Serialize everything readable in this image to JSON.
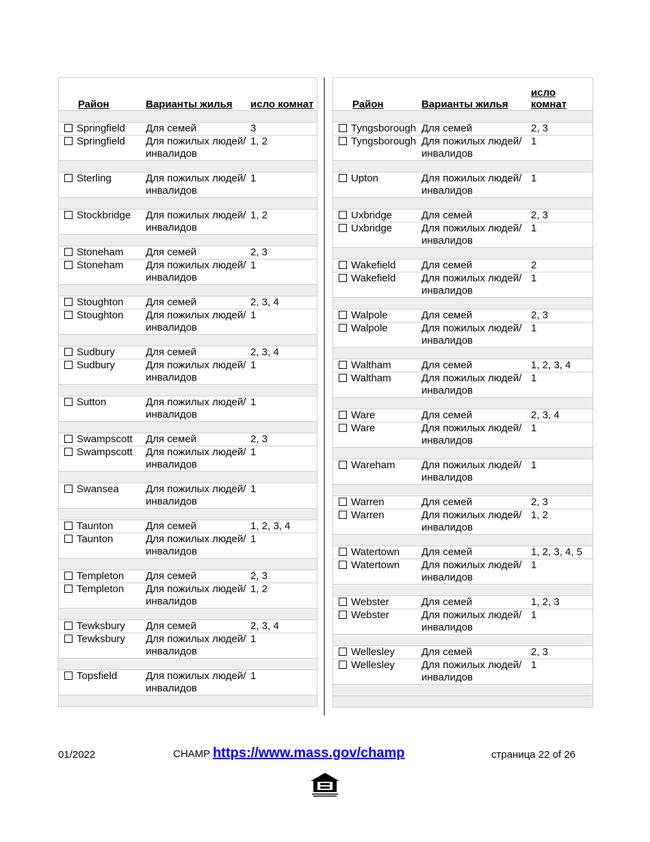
{
  "headers": {
    "district": "Район",
    "type": "Варианты жилья",
    "rooms": "исло комнат"
  },
  "left": [
    [
      {
        "d": "Springfield",
        "t": "Для семей",
        "r": "3"
      },
      {
        "d": "Springfield",
        "t": "Для пожилых людей/инвалидов",
        "r": "1, 2"
      }
    ],
    [
      {
        "d": "Sterling",
        "t": "Для пожилых людей/инвалидов",
        "r": "1"
      }
    ],
    [
      {
        "d": "Stockbridge",
        "t": "Для пожилых людей/инвалидов",
        "r": "1, 2"
      }
    ],
    [
      {
        "d": "Stoneham",
        "t": "Для семей",
        "r": "2, 3"
      },
      {
        "d": "Stoneham",
        "t": "Для пожилых людей/инвалидов",
        "r": "1"
      }
    ],
    [
      {
        "d": "Stoughton",
        "t": "Для семей",
        "r": "2, 3, 4"
      },
      {
        "d": "Stoughton",
        "t": "Для пожилых людей/инвалидов",
        "r": "1"
      }
    ],
    [
      {
        "d": "Sudbury",
        "t": "Для семей",
        "r": "2, 3, 4"
      },
      {
        "d": "Sudbury",
        "t": "Для пожилых людей/инвалидов",
        "r": "1"
      }
    ],
    [
      {
        "d": "Sutton",
        "t": "Для пожилых людей/инвалидов",
        "r": "1"
      }
    ],
    [
      {
        "d": "Swampscott",
        "t": "Для семей",
        "r": "2, 3"
      },
      {
        "d": "Swampscott",
        "t": "Для пожилых людей/инвалидов",
        "r": "1"
      }
    ],
    [
      {
        "d": "Swansea",
        "t": "Для пожилых людей/инвалидов",
        "r": "1"
      }
    ],
    [
      {
        "d": "Taunton",
        "t": "Для семей",
        "r": "1, 2, 3, 4"
      },
      {
        "d": "Taunton",
        "t": "Для пожилых людей/инвалидов",
        "r": "1"
      }
    ],
    [
      {
        "d": "Templeton",
        "t": "Для семей",
        "r": "2, 3"
      },
      {
        "d": "Templeton",
        "t": "Для пожилых людей/инвалидов",
        "r": "1, 2"
      }
    ],
    [
      {
        "d": "Tewksbury",
        "t": "Для семей",
        "r": "2, 3, 4"
      },
      {
        "d": "Tewksbury",
        "t": "Для пожилых людей/инвалидов",
        "r": "1"
      }
    ],
    [
      {
        "d": "Topsfield",
        "t": "Для пожилых людей/инвалидов",
        "r": "1"
      }
    ],
    []
  ],
  "right": [
    [
      {
        "d": "Tyngsborough",
        "t": "Для семей",
        "r": "2, 3"
      },
      {
        "d": "Tyngsborough",
        "t": "Для пожилых людей/инвалидов",
        "r": "1"
      }
    ],
    [
      {
        "d": "Upton",
        "t": "Для пожилых людей/инвалидов",
        "r": "1"
      }
    ],
    [
      {
        "d": "Uxbridge",
        "t": "Для семей",
        "r": "2, 3"
      },
      {
        "d": "Uxbridge",
        "t": "Для пожилых людей/инвалидов",
        "r": "1"
      }
    ],
    [
      {
        "d": "Wakefield",
        "t": "Для семей",
        "r": "2"
      },
      {
        "d": "Wakefield",
        "t": "Для пожилых людей/инвалидов",
        "r": "1"
      }
    ],
    [
      {
        "d": "Walpole",
        "t": "Для семей",
        "r": "2, 3"
      },
      {
        "d": "Walpole",
        "t": "Для пожилых людей/инвалидов",
        "r": "1"
      }
    ],
    [
      {
        "d": "Waltham",
        "t": "Для семей",
        "r": "1, 2, 3, 4"
      },
      {
        "d": "Waltham",
        "t": "Для пожилых людей/инвалидов",
        "r": "1"
      }
    ],
    [
      {
        "d": "Ware",
        "t": "Для семей",
        "r": "2, 3, 4"
      },
      {
        "d": "Ware",
        "t": "Для пожилых людей/инвалидов",
        "r": "1"
      }
    ],
    [
      {
        "d": "Wareham",
        "t": "Для пожилых людей/инвалидов",
        "r": "1"
      }
    ],
    [
      {
        "d": "Warren",
        "t": "Для семей",
        "r": "2, 3"
      },
      {
        "d": "Warren",
        "t": "Для пожилых людей/инвалидов",
        "r": "1, 2"
      }
    ],
    [
      {
        "d": "Watertown",
        "t": "Для семей",
        "r": "1, 2, 3, 4, 5"
      },
      {
        "d": "Watertown",
        "t": "Для пожилых людей/инвалидов",
        "r": "1"
      }
    ],
    [
      {
        "d": "Webster",
        "t": "Для семей",
        "r": "1, 2, 3"
      },
      {
        "d": "Webster",
        "t": "Для пожилых людей/инвалидов",
        "r": "1"
      }
    ],
    [
      {
        "d": "Wellesley",
        "t": "Для семей",
        "r": "2, 3"
      },
      {
        "d": "Wellesley",
        "t": "Для пожилых людей/инвалидов",
        "r": "1"
      }
    ],
    [],
    []
  ],
  "footer": {
    "date": "01/2022",
    "champ": "CHAMP",
    "url": "https://www.mass.gov/champ",
    "page": "страница 22 of 26"
  },
  "logo": {
    "text": "EQUAL HOUSING OPPORTUNITY",
    "icon": "equal-housing-icon"
  }
}
